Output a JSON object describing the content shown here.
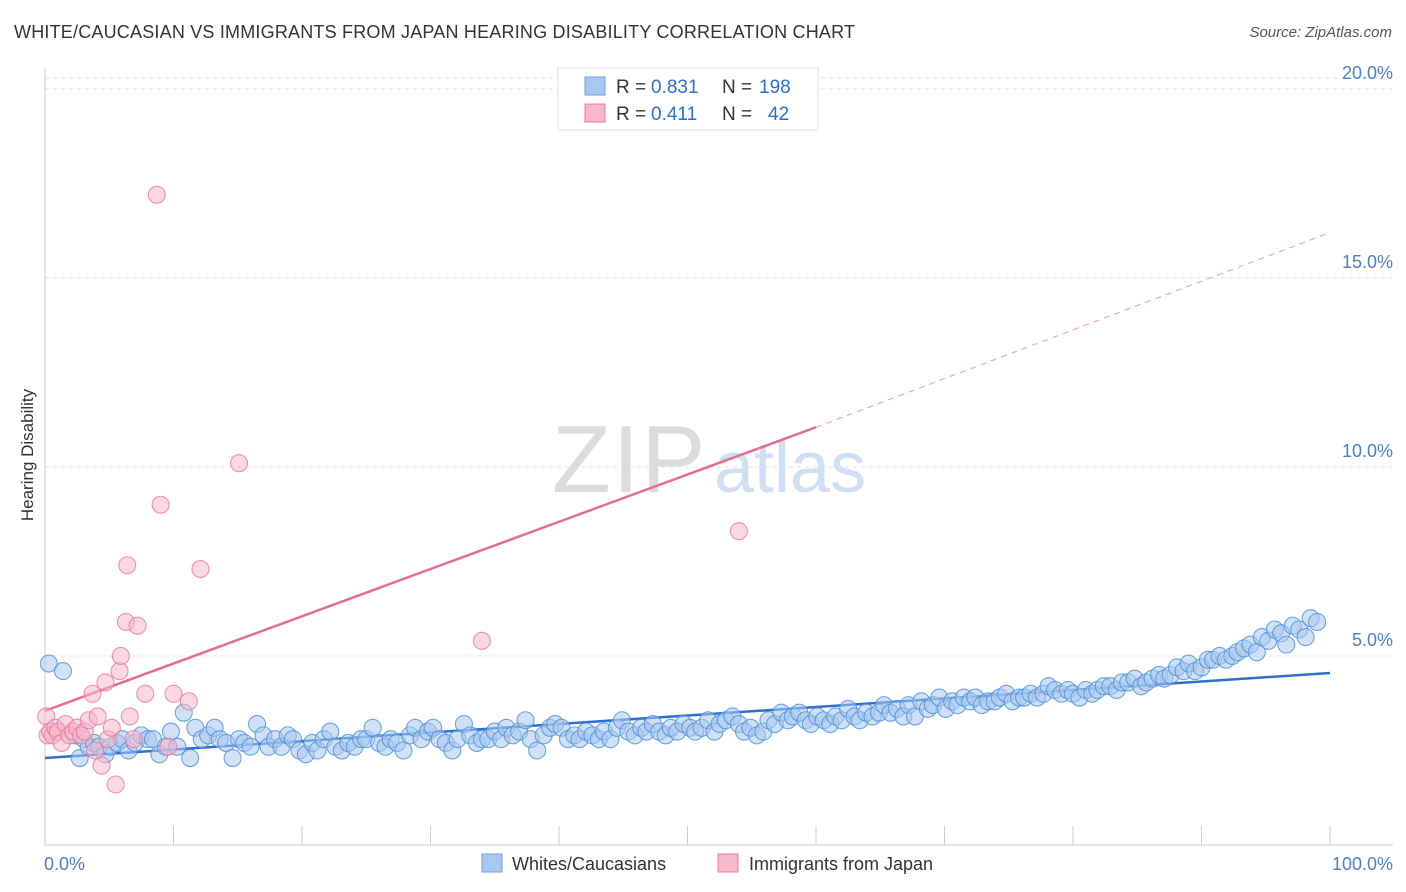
{
  "title": "WHITE/CAUCASIAN VS IMMIGRANTS FROM JAPAN HEARING DISABILITY CORRELATION CHART",
  "source": "Source: ZipAtlas.com",
  "watermark": {
    "zip": "ZIP",
    "atlas": "atlas"
  },
  "legend_top": [
    {
      "r_label": "R =",
      "r_value": "0.831",
      "n_label": "N =",
      "n_value": "198",
      "color": "#a9c8f0"
    },
    {
      "r_label": "R =",
      "r_value": "0.411",
      "n_label": "N =",
      "n_value": "42",
      "color": "#f7b8ca"
    }
  ],
  "legend_bottom": [
    {
      "label": "Whites/Caucasians",
      "color": "#a9c8f0"
    },
    {
      "label": "Immigrants from Japan",
      "color": "#f7b8ca"
    }
  ],
  "chart_data": {
    "type": "scatter",
    "ylabel": "Hearing Disability",
    "xlabel": "",
    "xlim": [
      0,
      100
    ],
    "ylim": [
      0,
      20.5
    ],
    "x_tick_labels": [
      {
        "value": 0,
        "label": "0.0%"
      },
      {
        "value": 100,
        "label": "100.0%"
      }
    ],
    "x_minor_ticks": [
      10,
      20,
      30,
      40,
      50,
      60,
      70,
      80,
      90,
      100
    ],
    "y_ticks": [
      {
        "value": 5,
        "label": "5.0%"
      },
      {
        "value": 10,
        "label": "10.0%"
      },
      {
        "value": 15,
        "label": "15.0%"
      },
      {
        "value": 20,
        "label": "20.0%"
      }
    ],
    "grid": "horizontal-dashed",
    "series": [
      {
        "name": "Whites/Caucasians",
        "color": "#4a90d9",
        "fill": "#a9c8f0",
        "trend": {
          "x0": 0,
          "y0": 2.3,
          "x1": 100,
          "y1": 4.55,
          "style": "solid",
          "color": "#2b6fcf"
        },
        "points": [
          [
            0.3,
            4.8
          ],
          [
            1.4,
            4.6
          ],
          [
            2.3,
            2.9
          ],
          [
            2.7,
            2.3
          ],
          [
            3.0,
            2.8
          ],
          [
            3.4,
            2.6
          ],
          [
            3.8,
            2.7
          ],
          [
            4.2,
            2.6
          ],
          [
            4.7,
            2.4
          ],
          [
            5.1,
            2.6
          ],
          [
            5.6,
            2.7
          ],
          [
            6.0,
            2.8
          ],
          [
            6.5,
            2.5
          ],
          [
            7.0,
            2.7
          ],
          [
            7.5,
            2.9
          ],
          [
            8.0,
            2.8
          ],
          [
            8.4,
            2.8
          ],
          [
            8.9,
            2.4
          ],
          [
            9.4,
            2.6
          ],
          [
            9.8,
            3.0
          ],
          [
            10.3,
            2.6
          ],
          [
            10.8,
            3.5
          ],
          [
            11.3,
            2.3
          ],
          [
            11.7,
            3.1
          ],
          [
            12.2,
            2.8
          ],
          [
            12.7,
            2.9
          ],
          [
            13.2,
            3.1
          ],
          [
            13.6,
            2.8
          ],
          [
            14.1,
            2.7
          ],
          [
            14.6,
            2.3
          ],
          [
            15.1,
            2.8
          ],
          [
            15.5,
            2.7
          ],
          [
            16.0,
            2.6
          ],
          [
            16.5,
            3.2
          ],
          [
            17.0,
            2.9
          ],
          [
            17.4,
            2.6
          ],
          [
            17.9,
            2.8
          ],
          [
            18.4,
            2.6
          ],
          [
            18.9,
            2.9
          ],
          [
            19.3,
            2.8
          ],
          [
            19.8,
            2.5
          ],
          [
            20.3,
            2.4
          ],
          [
            20.8,
            2.7
          ],
          [
            21.2,
            2.5
          ],
          [
            21.7,
            2.8
          ],
          [
            22.2,
            3.0
          ],
          [
            22.6,
            2.6
          ],
          [
            23.1,
            2.5
          ],
          [
            23.6,
            2.7
          ],
          [
            24.1,
            2.6
          ],
          [
            24.6,
            2.8
          ],
          [
            25.0,
            2.8
          ],
          [
            25.5,
            3.1
          ],
          [
            26.0,
            2.7
          ],
          [
            26.5,
            2.6
          ],
          [
            26.9,
            2.8
          ],
          [
            27.4,
            2.7
          ],
          [
            27.9,
            2.5
          ],
          [
            28.4,
            2.9
          ],
          [
            28.8,
            3.1
          ],
          [
            29.3,
            2.8
          ],
          [
            29.8,
            3.0
          ],
          [
            30.2,
            3.1
          ],
          [
            30.7,
            2.8
          ],
          [
            31.2,
            2.7
          ],
          [
            31.7,
            2.5
          ],
          [
            32.1,
            2.8
          ],
          [
            32.6,
            3.2
          ],
          [
            33.1,
            2.9
          ],
          [
            33.6,
            2.7
          ],
          [
            34.0,
            2.8
          ],
          [
            34.5,
            2.8
          ],
          [
            35.0,
            3.0
          ],
          [
            35.5,
            2.8
          ],
          [
            35.9,
            3.1
          ],
          [
            36.4,
            2.9
          ],
          [
            36.9,
            3.0
          ],
          [
            37.4,
            3.3
          ],
          [
            37.8,
            2.8
          ],
          [
            38.3,
            2.5
          ],
          [
            38.8,
            2.9
          ],
          [
            39.3,
            3.1
          ],
          [
            39.7,
            3.2
          ],
          [
            40.2,
            3.1
          ],
          [
            40.7,
            2.8
          ],
          [
            41.2,
            2.9
          ],
          [
            41.6,
            2.8
          ],
          [
            42.1,
            3.0
          ],
          [
            42.6,
            2.9
          ],
          [
            43.1,
            2.8
          ],
          [
            43.5,
            3.0
          ],
          [
            44.0,
            2.8
          ],
          [
            44.5,
            3.1
          ],
          [
            44.9,
            3.3
          ],
          [
            45.4,
            3.0
          ],
          [
            45.9,
            2.9
          ],
          [
            46.4,
            3.1
          ],
          [
            46.8,
            3.0
          ],
          [
            47.3,
            3.2
          ],
          [
            47.8,
            3.0
          ],
          [
            48.3,
            2.9
          ],
          [
            48.7,
            3.1
          ],
          [
            49.2,
            3.0
          ],
          [
            49.7,
            3.2
          ],
          [
            50.2,
            3.1
          ],
          [
            50.6,
            3.0
          ],
          [
            51.1,
            3.1
          ],
          [
            51.6,
            3.3
          ],
          [
            52.1,
            3.0
          ],
          [
            52.5,
            3.2
          ],
          [
            53.0,
            3.3
          ],
          [
            53.5,
            3.4
          ],
          [
            54.0,
            3.2
          ],
          [
            54.4,
            3.0
          ],
          [
            54.9,
            3.1
          ],
          [
            55.4,
            2.9
          ],
          [
            55.9,
            3.0
          ],
          [
            56.3,
            3.3
          ],
          [
            56.8,
            3.2
          ],
          [
            57.3,
            3.5
          ],
          [
            57.8,
            3.3
          ],
          [
            58.2,
            3.4
          ],
          [
            58.7,
            3.5
          ],
          [
            59.2,
            3.3
          ],
          [
            59.6,
            3.2
          ],
          [
            60.1,
            3.4
          ],
          [
            60.6,
            3.3
          ],
          [
            61.1,
            3.2
          ],
          [
            61.5,
            3.4
          ],
          [
            62.0,
            3.3
          ],
          [
            62.5,
            3.6
          ],
          [
            63.0,
            3.4
          ],
          [
            63.4,
            3.3
          ],
          [
            63.9,
            3.5
          ],
          [
            64.4,
            3.4
          ],
          [
            64.9,
            3.5
          ],
          [
            65.3,
            3.7
          ],
          [
            65.8,
            3.5
          ],
          [
            66.3,
            3.6
          ],
          [
            66.8,
            3.4
          ],
          [
            67.2,
            3.7
          ],
          [
            67.7,
            3.4
          ],
          [
            68.2,
            3.8
          ],
          [
            68.7,
            3.6
          ],
          [
            69.1,
            3.7
          ],
          [
            69.6,
            3.9
          ],
          [
            70.1,
            3.6
          ],
          [
            70.6,
            3.8
          ],
          [
            71.0,
            3.7
          ],
          [
            71.5,
            3.9
          ],
          [
            72.0,
            3.8
          ],
          [
            72.4,
            3.9
          ],
          [
            72.9,
            3.7
          ],
          [
            73.4,
            3.8
          ],
          [
            73.9,
            3.8
          ],
          [
            74.3,
            3.9
          ],
          [
            74.8,
            4.0
          ],
          [
            75.3,
            3.8
          ],
          [
            75.8,
            3.9
          ],
          [
            76.2,
            3.9
          ],
          [
            76.7,
            4.0
          ],
          [
            77.2,
            3.9
          ],
          [
            77.7,
            4.0
          ],
          [
            78.1,
            4.2
          ],
          [
            78.6,
            4.1
          ],
          [
            79.1,
            4.0
          ],
          [
            79.6,
            4.1
          ],
          [
            80.0,
            4.0
          ],
          [
            80.5,
            3.9
          ],
          [
            81.0,
            4.1
          ],
          [
            81.5,
            4.0
          ],
          [
            81.9,
            4.1
          ],
          [
            82.4,
            4.2
          ],
          [
            82.9,
            4.2
          ],
          [
            83.4,
            4.1
          ],
          [
            83.8,
            4.3
          ],
          [
            84.3,
            4.3
          ],
          [
            84.8,
            4.4
          ],
          [
            85.3,
            4.2
          ],
          [
            85.7,
            4.3
          ],
          [
            86.2,
            4.4
          ],
          [
            86.7,
            4.5
          ],
          [
            87.1,
            4.4
          ],
          [
            87.6,
            4.5
          ],
          [
            88.1,
            4.7
          ],
          [
            88.6,
            4.6
          ],
          [
            89.0,
            4.8
          ],
          [
            89.5,
            4.6
          ],
          [
            90.0,
            4.7
          ],
          [
            90.5,
            4.9
          ],
          [
            90.9,
            4.9
          ],
          [
            91.4,
            5.0
          ],
          [
            91.9,
            4.9
          ],
          [
            92.4,
            5.0
          ],
          [
            92.8,
            5.1
          ],
          [
            93.3,
            5.2
          ],
          [
            93.8,
            5.3
          ],
          [
            94.3,
            5.1
          ],
          [
            94.7,
            5.5
          ],
          [
            95.2,
            5.4
          ],
          [
            95.7,
            5.7
          ],
          [
            96.2,
            5.6
          ],
          [
            96.6,
            5.3
          ],
          [
            97.1,
            5.8
          ],
          [
            97.6,
            5.7
          ],
          [
            98.1,
            5.5
          ],
          [
            98.5,
            6.0
          ],
          [
            99.0,
            5.9
          ]
        ]
      },
      {
        "name": "Immigrants from Japan",
        "color": "#e8799c",
        "fill": "#f7b8ca",
        "trend": {
          "x0": 0,
          "y0": 3.55,
          "x1": 60,
          "y1": 11.05,
          "extend_to_x": 100,
          "extend_to_y": 16.2,
          "style": "solid-then-dashed",
          "color": "#e46d95"
        },
        "points": [
          [
            0.1,
            3.4
          ],
          [
            0.2,
            2.9
          ],
          [
            0.4,
            3.0
          ],
          [
            0.6,
            2.9
          ],
          [
            0.8,
            3.1
          ],
          [
            1.0,
            3.0
          ],
          [
            1.3,
            2.7
          ],
          [
            1.6,
            3.2
          ],
          [
            1.9,
            2.9
          ],
          [
            2.2,
            3.0
          ],
          [
            2.5,
            3.1
          ],
          [
            2.8,
            2.9
          ],
          [
            3.1,
            3.0
          ],
          [
            3.4,
            3.3
          ],
          [
            3.7,
            4.0
          ],
          [
            3.9,
            2.5
          ],
          [
            4.1,
            3.4
          ],
          [
            4.4,
            2.1
          ],
          [
            4.7,
            4.3
          ],
          [
            4.9,
            2.8
          ],
          [
            5.2,
            3.1
          ],
          [
            5.5,
            1.6
          ],
          [
            5.8,
            4.6
          ],
          [
            5.9,
            5.0
          ],
          [
            6.3,
            5.9
          ],
          [
            6.4,
            7.4
          ],
          [
            6.6,
            3.4
          ],
          [
            6.9,
            2.8
          ],
          [
            7.2,
            5.8
          ],
          [
            7.8,
            4.0
          ],
          [
            8.7,
            17.2
          ],
          [
            9.0,
            9.0
          ],
          [
            9.6,
            2.6
          ],
          [
            10.0,
            4.0
          ],
          [
            11.2,
            3.8
          ],
          [
            12.1,
            7.3
          ],
          [
            15.1,
            10.1
          ],
          [
            34.0,
            5.4
          ],
          [
            54.0,
            8.3
          ]
        ]
      }
    ]
  }
}
